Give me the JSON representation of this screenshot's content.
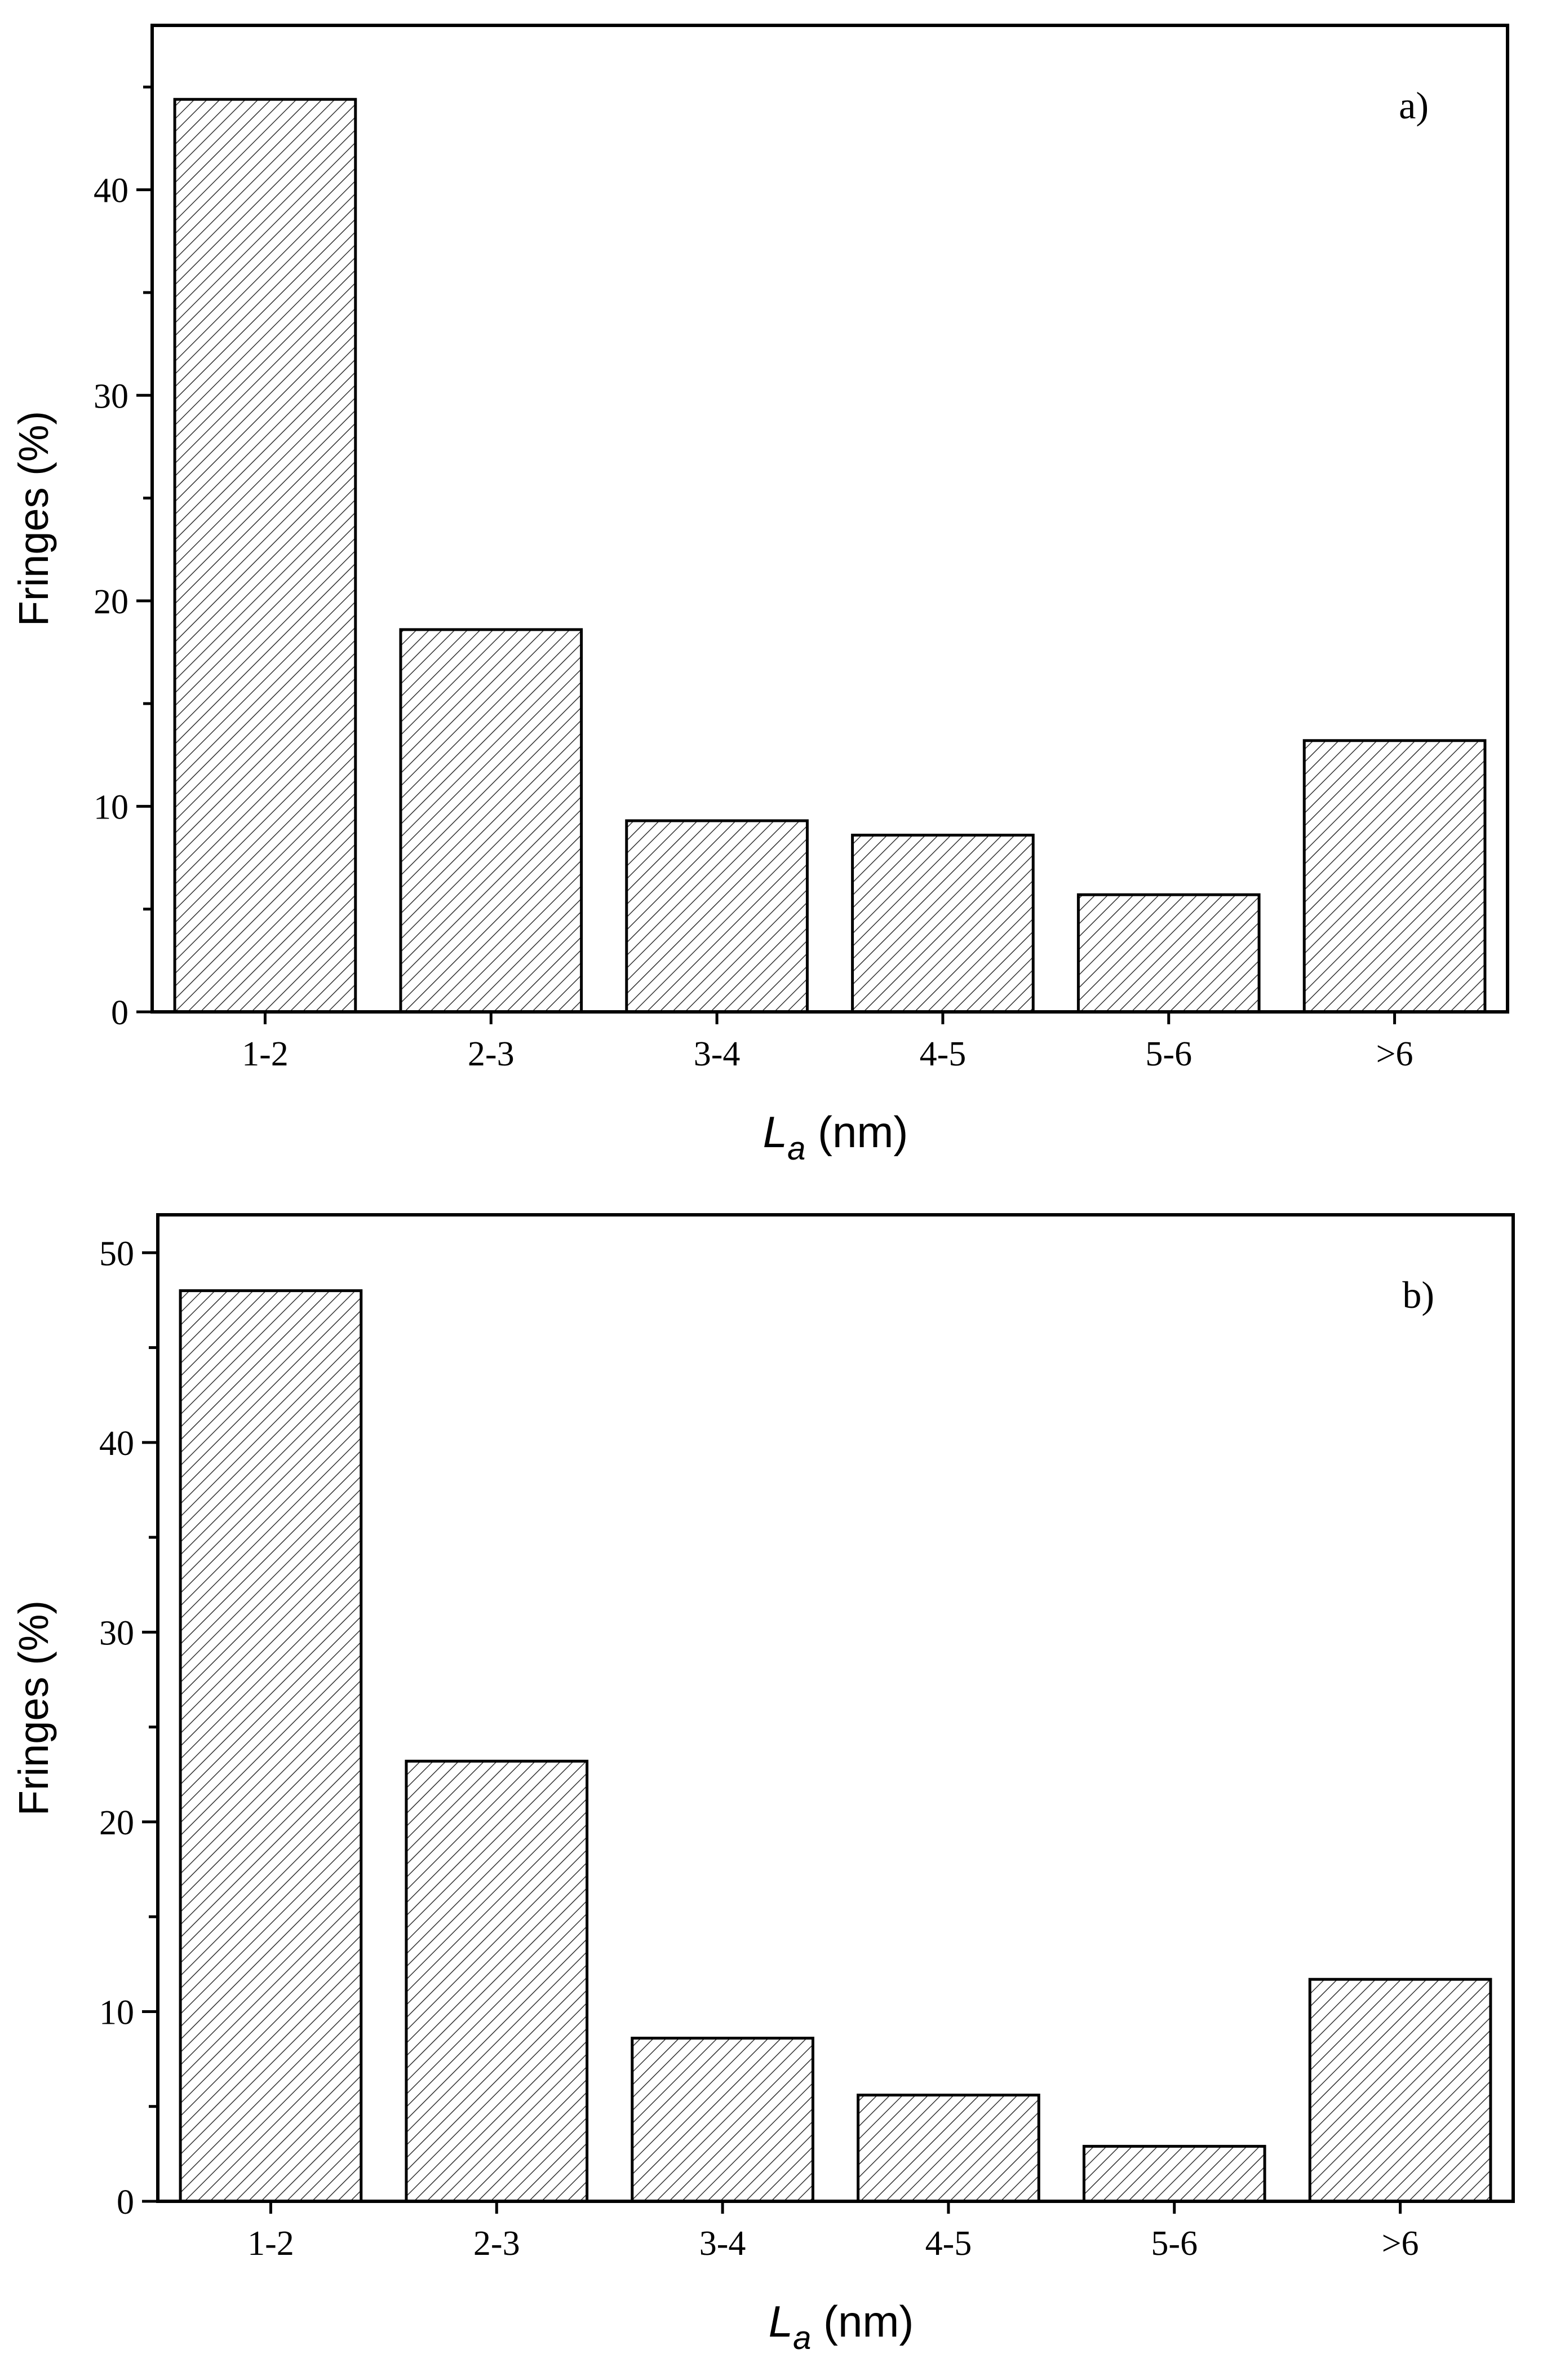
{
  "chart_data": [
    {
      "type": "bar",
      "panel_label": "a)",
      "categories": [
        "1-2",
        "2-3",
        "3-4",
        "4-5",
        "5-6",
        ">6"
      ],
      "values": [
        44.4,
        18.6,
        9.3,
        8.6,
        5.7,
        13.2
      ],
      "ylabel": "Fringes (%)",
      "xlabel": {
        "var": "L",
        "sub": "a",
        "unit": " (nm)"
      },
      "ylim": [
        0,
        48
      ],
      "yticks": [
        0,
        10,
        20,
        30,
        40
      ],
      "fill": "diagonal hatch",
      "grid": false
    },
    {
      "type": "bar",
      "panel_label": "b)",
      "categories": [
        "1-2",
        "2-3",
        "3-4",
        "4-5",
        "5-6",
        ">6"
      ],
      "values": [
        48.0,
        23.2,
        8.6,
        5.6,
        2.9,
        11.7
      ],
      "ylabel": "Fringes (%)",
      "xlabel": {
        "var": "L",
        "sub": "a",
        "unit": " (nm)"
      },
      "ylim": [
        0,
        52
      ],
      "yticks": [
        0,
        10,
        20,
        30,
        40,
        50
      ],
      "fill": "diagonal hatch",
      "grid": false
    }
  ],
  "colors": {
    "axis": "#000000",
    "bar_fill": "#ffffff",
    "hatch": "#333333"
  }
}
